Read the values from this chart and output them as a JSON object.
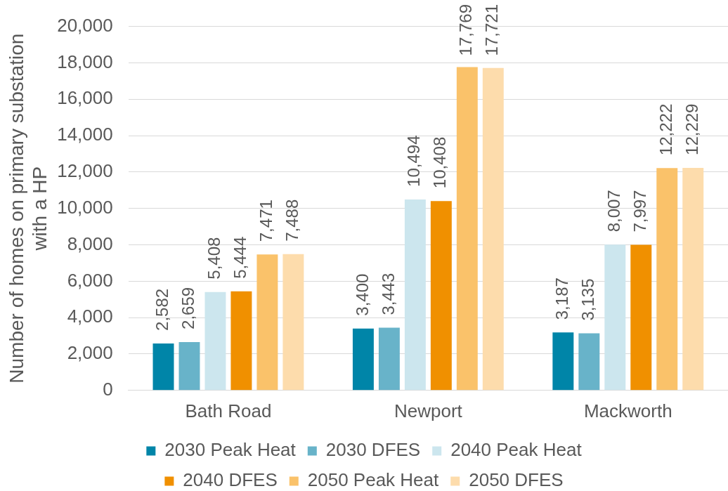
{
  "chart_data": {
    "type": "bar",
    "ylabel": "Number of homes on primary substation with a HP",
    "categories": [
      "Bath Road",
      "Newport",
      "Mackworth"
    ],
    "series": [
      {
        "name": "2030 Peak Heat",
        "color": "#0085a8",
        "values": [
          2582,
          3400,
          3187
        ],
        "value_labels": [
          "2,582",
          "3,400",
          "3,187"
        ]
      },
      {
        "name": "2030 DFES",
        "color": "#68b3c9",
        "values": [
          2659,
          3443,
          3135
        ],
        "value_labels": [
          "2,659",
          "3,443",
          "3,135"
        ]
      },
      {
        "name": "2040 Peak Heat",
        "color": "#cce6ee",
        "values": [
          5408,
          10494,
          8007
        ],
        "value_labels": [
          "5,408",
          "10,494",
          "8,007"
        ]
      },
      {
        "name": "2040 DFES",
        "color": "#f09000",
        "values": [
          5444,
          10408,
          7997
        ],
        "value_labels": [
          "5,444",
          "10,408",
          "7,997"
        ]
      },
      {
        "name": "2050 Peak Heat",
        "color": "#fac26a",
        "values": [
          7471,
          17769,
          12222
        ],
        "value_labels": [
          "7,471",
          "17,769",
          "12,222"
        ]
      },
      {
        "name": "2050 DFES",
        "color": "#fddcac",
        "values": [
          7488,
          17721,
          12229
        ],
        "value_labels": [
          "7,488",
          "17,721",
          "12,229"
        ]
      }
    ],
    "ylim": [
      0,
      20000
    ],
    "yticks": [
      0,
      {
        "value": 2000,
        "label": "2,000"
      },
      {
        "value": 4000,
        "label": "4,000"
      },
      {
        "value": 6000,
        "label": "6,000"
      },
      {
        "value": 8000,
        "label": "8,000"
      },
      {
        "value": 10000,
        "label": "10,000"
      },
      {
        "value": 12000,
        "label": "12,000"
      },
      {
        "value": 14000,
        "label": "14,000"
      },
      {
        "value": 16000,
        "label": "16,000"
      },
      {
        "value": 18000,
        "label": "18,000"
      },
      {
        "value": 20000,
        "label": "20,000"
      }
    ],
    "grid": "y",
    "legend": "bottom"
  }
}
